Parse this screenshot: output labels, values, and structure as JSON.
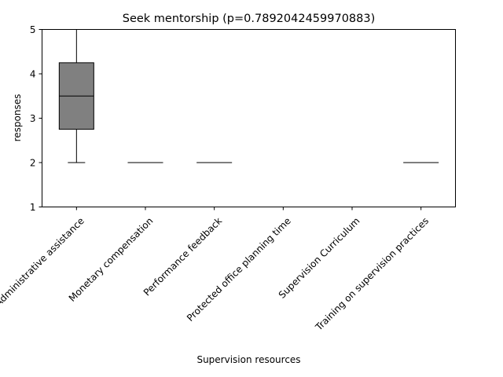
{
  "chart_data": {
    "type": "box",
    "title": "Seek mentorship (p=0.7892042459970883)",
    "xlabel": "Supervision resources",
    "ylabel": "responses",
    "ylim": [
      1,
      5
    ],
    "yticks": [
      1,
      2,
      3,
      4,
      5
    ],
    "grid": false,
    "categories": [
      "Administrative assistance",
      "Monetary compensation",
      "Performance feedback",
      "Protected office planning time",
      "Supervision Curriculum",
      "Training on supervision practices"
    ],
    "boxes": [
      {
        "whisker_low": 2,
        "q1": 2.75,
        "median": 3.5,
        "q3": 4.25,
        "whisker_high": 5
      },
      {
        "whisker_low": 2,
        "q1": 2,
        "median": 2,
        "q3": 2,
        "whisker_high": 2
      },
      {
        "whisker_low": 2,
        "q1": 2,
        "median": 2,
        "q3": 2,
        "whisker_high": 2
      },
      {
        "whisker_low": 5,
        "q1": 5,
        "median": 5,
        "q3": 5,
        "whisker_high": 5
      },
      {
        "whisker_low": 5,
        "q1": 5,
        "median": 5,
        "q3": 5,
        "whisker_high": 5
      },
      {
        "whisker_low": 2,
        "q1": 2,
        "median": 2,
        "q3": 2,
        "whisker_high": 2
      }
    ],
    "box_color": "#808080",
    "line_color": "#000000"
  }
}
